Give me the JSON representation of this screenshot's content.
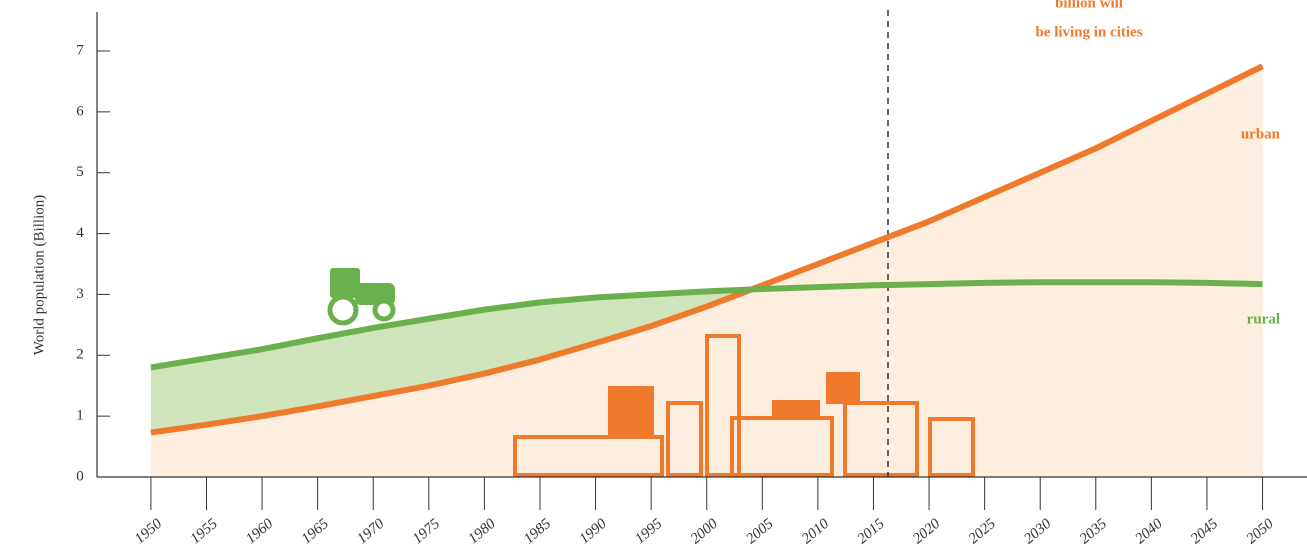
{
  "chart_data": {
    "type": "area",
    "y_label": "World population (Billion)",
    "annotation_lines": [
      "billion will",
      "be living in cities"
    ],
    "x": [
      1950,
      1955,
      1960,
      1965,
      1970,
      1975,
      1980,
      1985,
      1990,
      1995,
      2000,
      2005,
      2010,
      2015,
      2020,
      2025,
      2030,
      2035,
      2040,
      2045,
      2050
    ],
    "series": [
      {
        "name": "urban",
        "color": "#f07a2b",
        "fill": "#fdeee0",
        "values": [
          0.73,
          0.86,
          1.0,
          1.16,
          1.33,
          1.5,
          1.7,
          1.93,
          2.2,
          2.48,
          2.8,
          3.15,
          3.5,
          3.85,
          4.2,
          4.6,
          5.0,
          5.4,
          5.85,
          6.3,
          6.75
        ]
      },
      {
        "name": "rural",
        "color": "#6ab04c",
        "fill": "#cfe4bb",
        "values": [
          1.8,
          1.95,
          2.1,
          2.28,
          2.45,
          2.6,
          2.75,
          2.87,
          2.95,
          3.0,
          3.05,
          3.09,
          3.12,
          3.15,
          3.17,
          3.19,
          3.2,
          3.2,
          3.2,
          3.19,
          3.17
        ]
      }
    ],
    "xlim": [
      1946.5,
      2054
    ],
    "xticks": [
      1950,
      1955,
      1960,
      1965,
      1970,
      1975,
      1980,
      1985,
      1990,
      1995,
      2000,
      2005,
      2010,
      2015,
      2020,
      2025,
      2030,
      2035,
      2040,
      2045,
      2050
    ],
    "ylim": [
      0,
      7
    ],
    "yticks": [
      0,
      1,
      2,
      3,
      4,
      5,
      6,
      7
    ]
  }
}
